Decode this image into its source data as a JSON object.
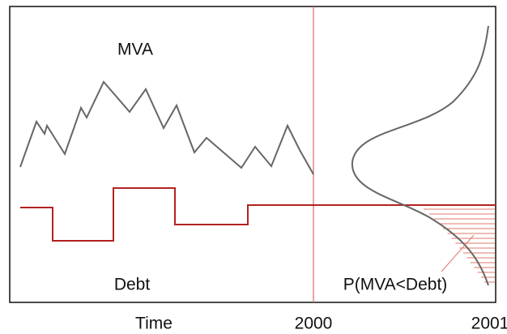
{
  "labels": {
    "mva": "MVA",
    "debt": "Debt",
    "probability": "P(MVA<Debt)"
  },
  "axis": {
    "title": "Time",
    "start": "2000",
    "end": "2001"
  }
}
